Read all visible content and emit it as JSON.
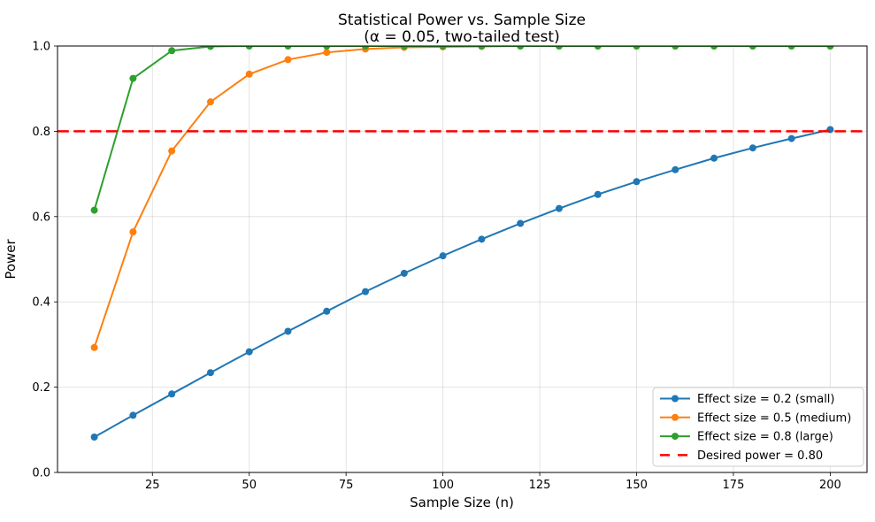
{
  "figure": {
    "background_color": "#ffffff",
    "text_color": "#000000",
    "spine_color": "#000000",
    "grid_color": "#b0b0b0"
  },
  "chart_data": {
    "type": "line",
    "title": "Statistical Power vs. Sample Size",
    "subtitle": "(α = 0.05, two-tailed test)",
    "xlabel": "Sample Size (n)",
    "ylabel": "Power",
    "xlim": [
      0.5,
      209.5
    ],
    "ylim": [
      0.0,
      1.0
    ],
    "grid": true,
    "legend_position": "lower right",
    "x_ticks": [
      25,
      50,
      75,
      100,
      125,
      150,
      175,
      200
    ],
    "x_tick_labels": [
      "25",
      "50",
      "75",
      "100",
      "125",
      "150",
      "175",
      "200"
    ],
    "y_ticks": [
      0.0,
      0.2,
      0.4,
      0.6,
      0.8,
      1.0
    ],
    "y_tick_labels": [
      "0.0",
      "0.2",
      "0.4",
      "0.6",
      "0.8",
      "1.0"
    ],
    "x": [
      10,
      20,
      30,
      40,
      50,
      60,
      70,
      80,
      90,
      100,
      110,
      120,
      130,
      140,
      150,
      160,
      170,
      180,
      190,
      200
    ],
    "series": [
      {
        "name": "Effect size = 0.2 (small)",
        "color": "#1f77b4",
        "marker": "circle",
        "line_style": "solid",
        "values": [
          0.083,
          0.134,
          0.184,
          0.234,
          0.283,
          0.331,
          0.378,
          0.424,
          0.467,
          0.508,
          0.547,
          0.584,
          0.619,
          0.652,
          0.682,
          0.71,
          0.737,
          0.761,
          0.783,
          0.804
        ]
      },
      {
        "name": "Effect size = 0.5 (medium)",
        "color": "#ff7f0e",
        "marker": "circle",
        "line_style": "solid",
        "values": [
          0.293,
          0.564,
          0.754,
          0.869,
          0.934,
          0.968,
          0.985,
          0.993,
          0.997,
          0.998,
          0.999,
          1.0,
          1.0,
          1.0,
          1.0,
          1.0,
          1.0,
          1.0,
          1.0,
          1.0
        ]
      },
      {
        "name": "Effect size = 0.8 (large)",
        "color": "#2ca02c",
        "marker": "circle",
        "line_style": "solid",
        "values": [
          0.615,
          0.924,
          0.989,
          0.999,
          1.0,
          1.0,
          1.0,
          1.0,
          1.0,
          1.0,
          1.0,
          1.0,
          1.0,
          1.0,
          1.0,
          1.0,
          1.0,
          1.0,
          1.0,
          1.0
        ]
      }
    ],
    "reference_line": {
      "label": "Desired power = 0.80",
      "value": 0.8,
      "color": "#ff0000",
      "line_style": "dashed"
    }
  }
}
